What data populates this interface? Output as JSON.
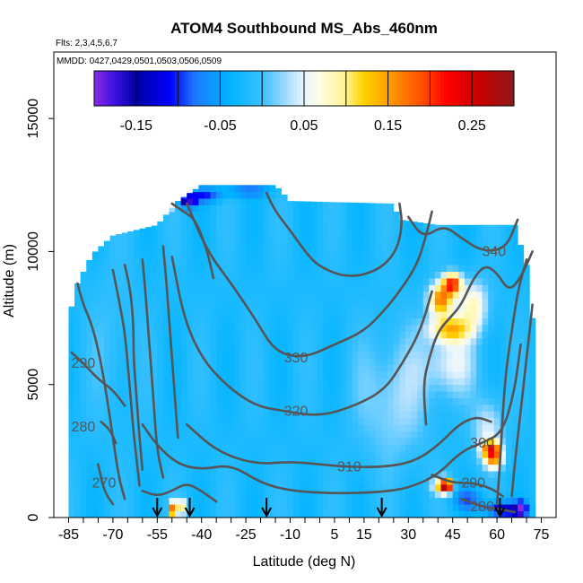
{
  "chart_data": {
    "type": "heatmap",
    "title": "ATOM4 Southbound MS_Abs_460nm",
    "flights_note": "Flts: 2,3,4,5,6,7",
    "dates_note": "MMDD: 0427,0429,0501,0503,0506,0509",
    "xlabel": "Latitude (deg N)",
    "ylabel": "Altitude (m)",
    "xlim": [
      -90,
      80
    ],
    "ylim": [
      0,
      17500
    ],
    "x_ticks": [
      -85,
      -70,
      -55,
      -40,
      -25,
      -10,
      5,
      15,
      30,
      45,
      60,
      75
    ],
    "y_ticks": [
      0,
      5000,
      10000,
      15000
    ],
    "colorbar": {
      "range": [
        -0.2,
        0.3
      ],
      "ticks": [
        -0.15,
        -0.05,
        0.05,
        0.15,
        0.25
      ],
      "tick_labels": [
        "-0.15",
        "-0.05",
        "0.05",
        "0.15",
        "0.25"
      ],
      "stops": [
        {
          "v": -0.2,
          "c": "#8a2be2"
        },
        {
          "v": -0.175,
          "c": "#3a10e0"
        },
        {
          "v": -0.15,
          "c": "#0000a0"
        },
        {
          "v": -0.11,
          "c": "#0000ff"
        },
        {
          "v": -0.08,
          "c": "#1e78ff"
        },
        {
          "v": -0.04,
          "c": "#00b4ff"
        },
        {
          "v": 0.0,
          "c": "#38c0ff"
        },
        {
          "v": 0.03,
          "c": "#a8dcff"
        },
        {
          "v": 0.05,
          "c": "#e8f6ff"
        },
        {
          "v": 0.07,
          "c": "#fffde0"
        },
        {
          "v": 0.1,
          "c": "#fff290"
        },
        {
          "v": 0.12,
          "c": "#ffd400"
        },
        {
          "v": 0.15,
          "c": "#ff9e00"
        },
        {
          "v": 0.19,
          "c": "#ff5000"
        },
        {
          "v": 0.22,
          "c": "#ff0000"
        },
        {
          "v": 0.26,
          "c": "#c80000"
        },
        {
          "v": 0.3,
          "c": "#8b1a1a"
        }
      ]
    },
    "coverage": [
      {
        "lat": -85,
        "top": 7500
      },
      {
        "lat": -82,
        "top": 8800
      },
      {
        "lat": -77,
        "top": 9900
      },
      {
        "lat": -70,
        "top": 10600
      },
      {
        "lat": -55,
        "top": 11000
      },
      {
        "lat": -48,
        "top": 11900
      },
      {
        "lat": -40,
        "top": 12500
      },
      {
        "lat": -15,
        "top": 12500
      },
      {
        "lat": -10,
        "top": 11900
      },
      {
        "lat": 25,
        "top": 11800
      },
      {
        "lat": 27,
        "top": 11200
      },
      {
        "lat": 40,
        "top": 11000
      },
      {
        "lat": 55,
        "top": 11000
      },
      {
        "lat": 66,
        "top": 11000
      },
      {
        "lat": 70,
        "top": 9500
      },
      {
        "lat": 72,
        "top": 7500
      },
      {
        "lat": 72,
        "top": 0
      }
    ],
    "background_value": -0.02,
    "anomalies": [
      {
        "lat": -45,
        "alt": 11900,
        "value": -0.17,
        "dlat": 3,
        "dalt": 250
      },
      {
        "lat": -39,
        "alt": 12100,
        "value": -0.09,
        "dlat": 6,
        "dalt": 250
      },
      {
        "lat": -25,
        "alt": 12300,
        "value": -0.07,
        "dlat": 10,
        "dalt": 250
      },
      {
        "lat": -50,
        "alt": 11800,
        "value": 0.04,
        "dlat": 2,
        "dalt": 250
      },
      {
        "lat": 41,
        "alt": 8200,
        "value": 0.17,
        "dlat": 4,
        "dalt": 600
      },
      {
        "lat": 45,
        "alt": 8800,
        "value": 0.2,
        "dlat": 3,
        "dalt": 400
      },
      {
        "lat": 44,
        "alt": 7100,
        "value": 0.12,
        "dlat": 7,
        "dalt": 500
      },
      {
        "lat": 52,
        "alt": 8000,
        "value": 0.08,
        "dlat": 5,
        "dalt": 900
      },
      {
        "lat": 44,
        "alt": 5800,
        "value": 0.05,
        "dlat": 9,
        "dalt": 1200
      },
      {
        "lat": 58,
        "alt": 2600,
        "value": 0.16,
        "dlat": 3,
        "dalt": 300
      },
      {
        "lat": 59,
        "alt": 2200,
        "value": 0.13,
        "dlat": 3,
        "dalt": 350
      },
      {
        "lat": 57,
        "alt": 3300,
        "value": 0.05,
        "dlat": 5,
        "dalt": 1200
      },
      {
        "lat": 43,
        "alt": 1200,
        "value": 0.23,
        "dlat": 2,
        "dalt": 250
      },
      {
        "lat": 41,
        "alt": 1200,
        "value": 0.1,
        "dlat": 3,
        "dalt": 300
      },
      {
        "lat": 50,
        "alt": 700,
        "value": -0.08,
        "dlat": 5,
        "dalt": 400
      },
      {
        "lat": 62,
        "alt": 300,
        "value": -0.14,
        "dlat": 6,
        "dalt": 300
      },
      {
        "lat": 68,
        "alt": 300,
        "value": -0.17,
        "dlat": 2,
        "dalt": 300
      },
      {
        "lat": -47,
        "alt": 400,
        "value": 0.12,
        "dlat": 2,
        "dalt": 300
      },
      {
        "lat": -50,
        "alt": 300,
        "value": 0.15,
        "dlat": 1,
        "dalt": 300
      },
      {
        "lat": 25,
        "alt": 4500,
        "value": 0.03,
        "dlat": 12,
        "dalt": 2500
      },
      {
        "lat": -70,
        "alt": 6500,
        "value": 0.0,
        "dlat": 8,
        "dalt": 3000
      }
    ],
    "arrows_lat": [
      -55,
      -44,
      -18,
      21,
      61
    ],
    "contours": [
      {
        "label": "340",
        "label_at": {
          "lat": 59,
          "alt": 10000
        },
        "points": [
          [
            67,
            11200
          ],
          [
            63,
            10100
          ],
          [
            55,
            10000
          ],
          [
            48,
            10500
          ],
          [
            42,
            11000
          ],
          [
            35,
            10500
          ],
          [
            30,
            11300
          ]
        ]
      },
      {
        "label": "330",
        "label_at": {
          "lat": -8,
          "alt": 6000
        },
        "points": [
          [
            -45,
            11800
          ],
          [
            -38,
            10000
          ],
          [
            -30,
            8800
          ],
          [
            -22,
            7500
          ],
          [
            -15,
            6200
          ],
          [
            -5,
            6000
          ],
          [
            5,
            6500
          ],
          [
            15,
            7000
          ],
          [
            22,
            7800
          ],
          [
            27,
            8500
          ],
          [
            33,
            9500
          ],
          [
            36,
            10600
          ],
          [
            38,
            11500
          ]
        ]
      },
      {
        "label": "320",
        "label_at": {
          "lat": -8,
          "alt": 4000
        },
        "points": [
          [
            -50,
            9800
          ],
          [
            -46,
            7500
          ],
          [
            -40,
            6000
          ],
          [
            -32,
            5000
          ],
          [
            -22,
            4200
          ],
          [
            -12,
            4000
          ],
          [
            0,
            3800
          ],
          [
            12,
            4200
          ],
          [
            22,
            4800
          ],
          [
            28,
            5800
          ],
          [
            34,
            7000
          ],
          [
            38,
            8500
          ]
        ]
      },
      {
        "label": "310",
        "label_at": {
          "lat": 10,
          "alt": 1900
        },
        "points": [
          [
            -45,
            3500
          ],
          [
            -35,
            2500
          ],
          [
            -22,
            2000
          ],
          [
            -10,
            2100
          ],
          [
            0,
            2000
          ],
          [
            10,
            1900
          ],
          [
            22,
            1900
          ],
          [
            32,
            2100
          ],
          [
            40,
            2700
          ],
          [
            47,
            3500
          ],
          [
            53,
            3800
          ],
          [
            58,
            3600
          ]
        ]
      },
      {
        "label": "300",
        "label_at": {
          "lat": 55,
          "alt": 2800
        },
        "points": [
          [
            -60,
            3500
          ],
          [
            -55,
            2700
          ],
          [
            -48,
            2000
          ],
          [
            -40,
            1800
          ],
          [
            -30,
            2000
          ],
          [
            -20,
            1300
          ],
          [
            -10,
            1000
          ],
          [
            5,
            900
          ],
          [
            20,
            950
          ],
          [
            30,
            1100
          ],
          [
            40,
            1600
          ],
          [
            48,
            2500
          ],
          [
            55,
            2800
          ],
          [
            62,
            3200
          ],
          [
            66,
            4800
          ],
          [
            68,
            6500
          ]
        ]
      },
      {
        "label": "290",
        "label_at": {
          "lat": -80,
          "alt": 5800
        },
        "points": [
          [
            -84,
            6200
          ],
          [
            -80,
            5800
          ],
          [
            -75,
            5200
          ],
          [
            -70,
            4800
          ],
          [
            -66,
            4200
          ]
        ]
      },
      {
        "label": "280",
        "label_at": {
          "lat": -80,
          "alt": 3400
        },
        "points": [
          [
            -74,
            3600
          ],
          [
            -71,
            3300
          ],
          [
            -69,
            2800
          ]
        ]
      },
      {
        "label": "270",
        "label_at": {
          "lat": -73,
          "alt": 1300
        },
        "points": [
          [
            -75,
            2000
          ],
          [
            -73,
            1000
          ],
          [
            -70,
            500
          ]
        ]
      },
      {
        "label": "290",
        "label_at": {
          "lat": 52,
          "alt": 1300
        },
        "points": [
          [
            38,
            1600
          ],
          [
            45,
            1300
          ],
          [
            52,
            1300
          ],
          [
            58,
            1100
          ],
          [
            62,
            800
          ]
        ]
      },
      {
        "label": "280",
        "label_at": {
          "lat": 55,
          "alt": 400
        },
        "points": [
          [
            48,
            700
          ],
          [
            55,
            400
          ],
          [
            62,
            300
          ],
          [
            66,
            200
          ]
        ]
      },
      {
        "label": "",
        "label_at": null,
        "points": [
          [
            -82,
            8800
          ],
          [
            -80,
            8000
          ],
          [
            -78,
            7500
          ],
          [
            -76,
            6800
          ],
          [
            -74,
            5800
          ],
          [
            -72,
            4500
          ],
          [
            -70,
            3000
          ],
          [
            -68,
            1500
          ],
          [
            -66,
            700
          ]
        ]
      },
      {
        "label": "",
        "label_at": null,
        "points": [
          [
            -70,
            9300
          ],
          [
            -68,
            8200
          ],
          [
            -66,
            7000
          ],
          [
            -65,
            5800
          ],
          [
            -64,
            4500
          ],
          [
            -63,
            3200
          ],
          [
            -62,
            2200
          ],
          [
            -61,
            1200
          ]
        ]
      },
      {
        "label": "",
        "label_at": null,
        "points": [
          [
            -66,
            9500
          ],
          [
            -64,
            8500
          ],
          [
            -63,
            7200
          ],
          [
            -63,
            6000
          ],
          [
            -62,
            4500
          ],
          [
            -61,
            3000
          ],
          [
            -60,
            1800
          ]
        ]
      },
      {
        "label": "",
        "label_at": null,
        "points": [
          [
            -60,
            9700
          ],
          [
            -59,
            8500
          ],
          [
            -58,
            7000
          ],
          [
            -57,
            5500
          ],
          [
            -56,
            4000
          ],
          [
            -55,
            2500
          ],
          [
            -53,
            1500
          ]
        ]
      },
      {
        "label": "",
        "label_at": null,
        "points": [
          [
            -53,
            10200
          ],
          [
            -52,
            9000
          ],
          [
            -51,
            7500
          ],
          [
            -50,
            6000
          ],
          [
            -49,
            4500
          ],
          [
            -48,
            3000
          ]
        ]
      },
      {
        "label": "",
        "label_at": null,
        "points": [
          [
            70,
            9700
          ],
          [
            67,
            8500
          ],
          [
            65,
            7000
          ],
          [
            63,
            5500
          ],
          [
            62,
            4000
          ],
          [
            61,
            2000
          ],
          [
            60,
            500
          ]
        ]
      },
      {
        "label": "",
        "label_at": null,
        "points": [
          [
            72,
            8000
          ],
          [
            70,
            6000
          ],
          [
            68,
            4000
          ],
          [
            66,
            2000
          ],
          [
            65,
            800
          ]
        ]
      },
      {
        "label": "",
        "label_at": null,
        "points": [
          [
            72,
            10000
          ],
          [
            68,
            9000
          ],
          [
            64,
            8500
          ],
          [
            60,
            9200
          ],
          [
            56,
            9500
          ],
          [
            52,
            9000
          ],
          [
            48,
            8000
          ],
          [
            44,
            7500
          ],
          [
            40,
            7000
          ],
          [
            37,
            6000
          ],
          [
            35,
            5000
          ],
          [
            36,
            3500
          ]
        ]
      },
      {
        "label": "",
        "label_at": null,
        "points": [
          [
            -50,
            11800
          ],
          [
            -46,
            11500
          ],
          [
            -42,
            11200
          ],
          [
            -38,
            10000
          ],
          [
            -36,
            9000
          ]
        ]
      },
      {
        "label": "",
        "label_at": null,
        "points": [
          [
            -18,
            12200
          ],
          [
            -15,
            11500
          ],
          [
            -10,
            10800
          ],
          [
            -5,
            10000
          ],
          [
            0,
            9400
          ],
          [
            10,
            9000
          ],
          [
            20,
            9300
          ],
          [
            26,
            10000
          ],
          [
            28,
            11000
          ],
          [
            27,
            11800
          ]
        ]
      },
      {
        "label": "",
        "label_at": null,
        "points": [
          [
            -60,
            1000
          ],
          [
            -55,
            800
          ],
          [
            -50,
            1000
          ],
          [
            -45,
            1300
          ],
          [
            -40,
            1000
          ],
          [
            -35,
            600
          ]
        ]
      }
    ]
  }
}
